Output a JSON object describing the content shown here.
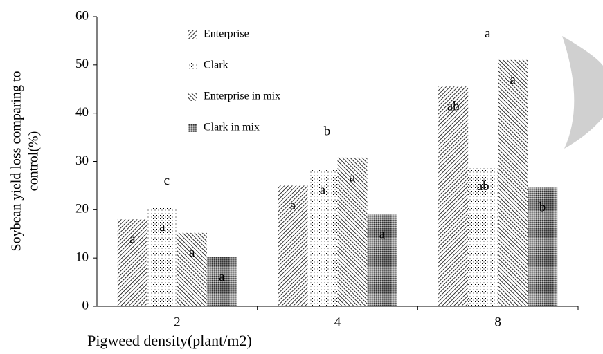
{
  "chart_data": {
    "type": "bar",
    "ylabel": [
      "Soybean yield loss comparing to",
      "control(%)"
    ],
    "xlabel": "Pigweed density(plant/m2)",
    "categories": [
      "2",
      "4",
      "8"
    ],
    "group_letters": [
      "c",
      "b",
      "a"
    ],
    "series": [
      {
        "name": "Enterprise",
        "color": "#000000",
        "pattern": "forward-diagonal",
        "values": [
          18,
          25,
          45.5
        ],
        "letters": [
          "a",
          "a",
          "ab"
        ]
      },
      {
        "name": "Clark",
        "color": "#000000",
        "pattern": "dots",
        "values": [
          20.5,
          28.2,
          29
        ],
        "letters": [
          "a",
          "a",
          "ab"
        ]
      },
      {
        "name": "Enterprise in mix",
        "color": "#000000",
        "pattern": "back-diagonal",
        "values": [
          15.2,
          30.8,
          51
        ],
        "letters": [
          "a",
          "a",
          "a"
        ]
      },
      {
        "name": "Clark in mix",
        "color": "#000000",
        "pattern": "crosshatch",
        "values": [
          10.2,
          19,
          24.6
        ],
        "letters": [
          "a",
          "a",
          "b"
        ]
      }
    ],
    "ylim": [
      0,
      60
    ],
    "yticks": [
      0,
      10,
      20,
      30,
      40,
      50,
      60
    ]
  }
}
